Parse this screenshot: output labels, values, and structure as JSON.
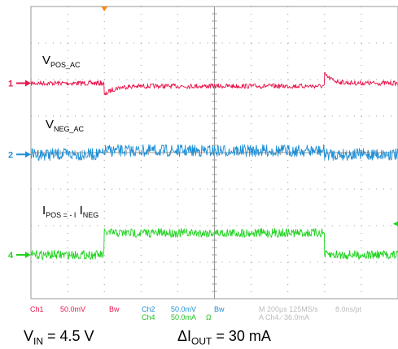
{
  "chart_data": {
    "type": "line",
    "title": "",
    "xlabel": "",
    "ylabel": "",
    "grid": true,
    "grid_divisions": {
      "x": 10,
      "y": 8
    },
    "series": [
      {
        "name": "V",
        "subscript": "POS_AC",
        "channel": "1",
        "color": "#e8154b",
        "volts_per_div": "50.0mV",
        "segments": [
          {
            "from_div": 0.0,
            "to_div": 2.0,
            "level_div": 5.9
          },
          {
            "from_div": 2.0,
            "to_div": 8.0,
            "level_div": 5.82,
            "transient": "negative-spike-recovery"
          },
          {
            "from_div": 8.0,
            "to_div": 10.0,
            "level_div": 5.9,
            "transient": "positive-spike-recovery"
          }
        ]
      },
      {
        "name": "V",
        "subscript": "NEG_AC",
        "channel": "2",
        "color": "#1e8fd6",
        "volts_per_div": "50.0mV",
        "segments": [
          {
            "from_div": 0.0,
            "to_div": 2.0,
            "level_div": 3.95
          },
          {
            "from_div": 2.0,
            "to_div": 8.0,
            "level_div": 4.05
          },
          {
            "from_div": 8.0,
            "to_div": 10.0,
            "level_div": 3.95
          }
        ]
      },
      {
        "name": "I",
        "subscript": "POS = - I",
        "subscript2": "NEG",
        "channel": "4",
        "color": "#21d321",
        "amps_per_div": "50.0mA",
        "segments": [
          {
            "from_div": 0.0,
            "to_div": 2.0,
            "level_div": 1.2
          },
          {
            "from_div": 2.0,
            "to_div": 8.0,
            "level_div": 1.8
          },
          {
            "from_div": 8.0,
            "to_div": 10.0,
            "level_div": 1.2
          }
        ]
      }
    ]
  },
  "status": {
    "ch1_label": "Ch1",
    "ch1_scale": "50.0mV",
    "ch1_bw": "Bw",
    "ch2_label": "Ch2",
    "ch2_scale": "50.0mV",
    "ch2_bw": "Bw",
    "ch4_label": "Ch4",
    "ch4_scale": "50.0mA",
    "ch4_unit": "Ω",
    "timebase": "M 200µs 125MS/s",
    "record": "8.0ns/pt",
    "trigger": "A  Ch4  ∕  36.0mA"
  },
  "markers": {
    "ch1": "1",
    "ch2": "2",
    "ch4": "4"
  },
  "captions": {
    "vin_main": "V",
    "vin_sub": "IN",
    "vin_value": " = 4.5 V",
    "iout_main": "ΔI",
    "iout_sub": "OUT",
    "iout_value": " = 30 mA"
  },
  "colors": {
    "grid": "#9a9a9a",
    "trigger_marker": "#f58a1f"
  }
}
